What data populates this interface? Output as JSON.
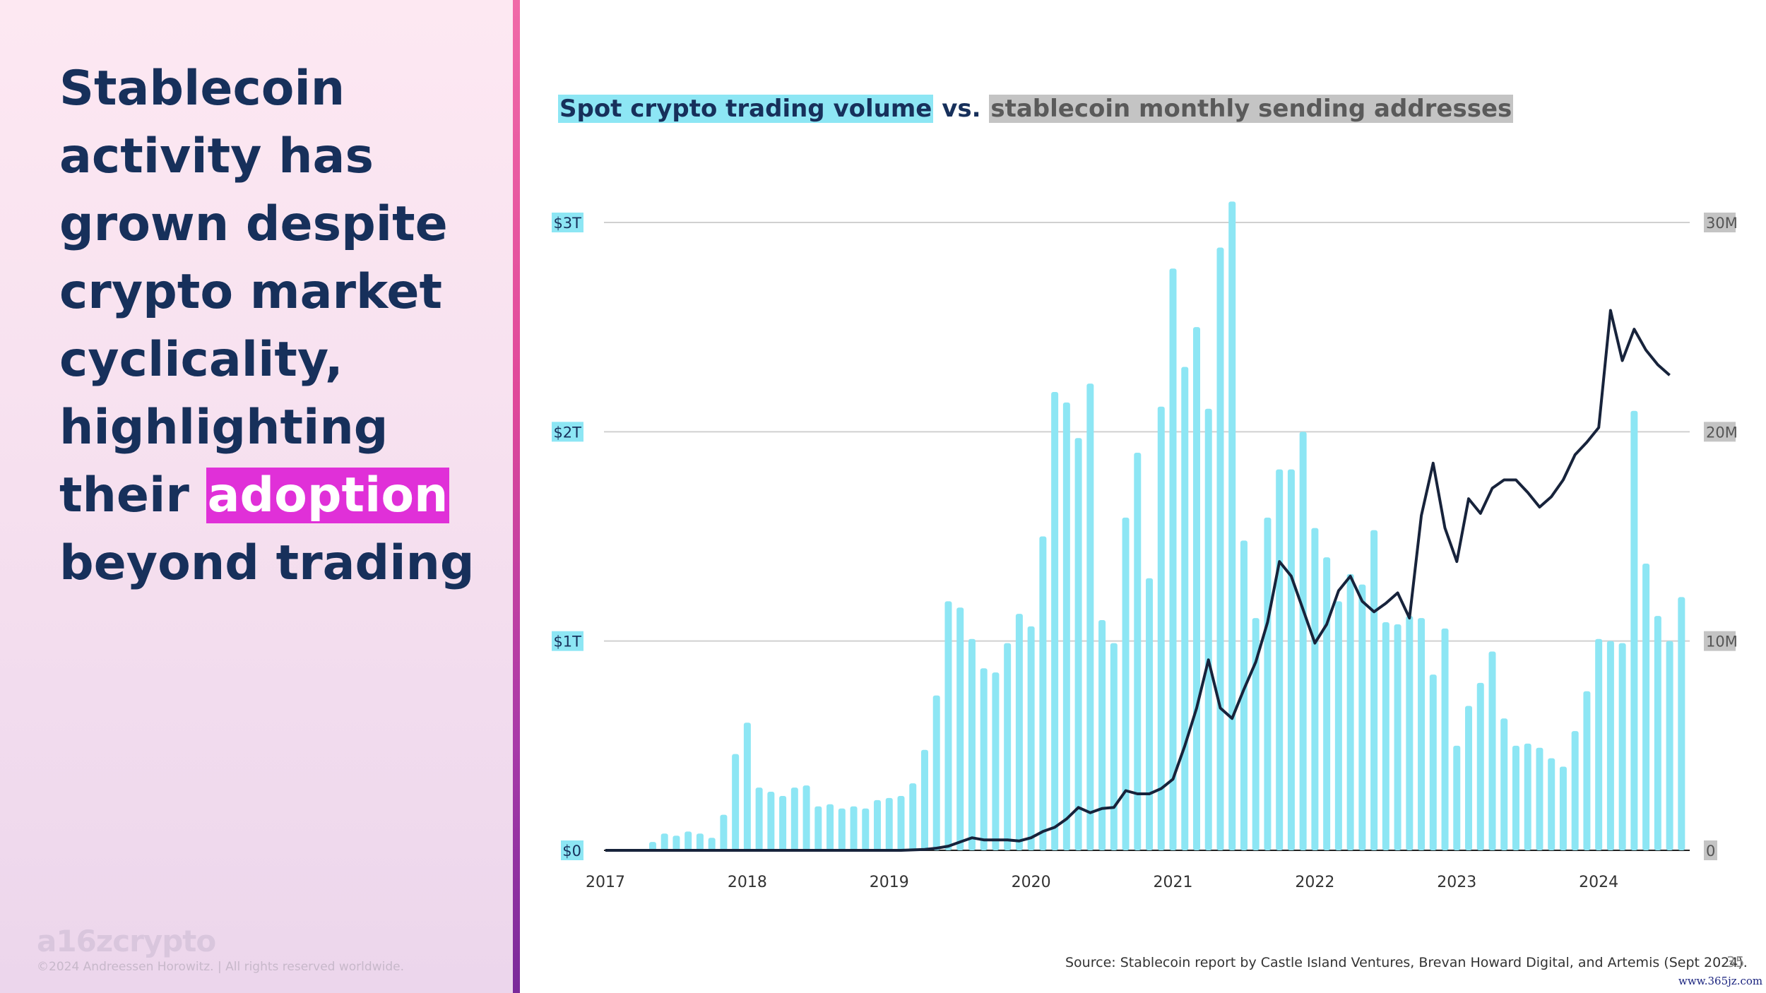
{
  "headline": {
    "before": "Stablecoin activity has grown despite crypto market cyclicality, highlighting their ",
    "highlight": "adoption",
    "after": " beyond trading"
  },
  "brand": {
    "logo": "a16zcrypto",
    "copyright": "©2024 Andreessen Horowitz. |  All rights reserved worldwide."
  },
  "colors": {
    "bars": "#8de6f4",
    "line": "#17233b",
    "accent": "#e030d8",
    "gridline": "#d0d0d0"
  },
  "source": "Source: Stablecoin report by Castle Island Ventures, Brevan Howard Digital, and Artemis (Sept 2024).",
  "page_number": "35",
  "watermark": "www.365jz.com",
  "chart_data": {
    "type": "bar+line",
    "title_parts": [
      "Spot crypto trading volume",
      " vs. ",
      "stablecoin monthly sending addresses"
    ],
    "x_start": "2017-01",
    "x_tick_labels": [
      "2017",
      "2018",
      "2019",
      "2020",
      "2021",
      "2022",
      "2023",
      "2024"
    ],
    "left_axis": {
      "label": "Spot crypto trading volume",
      "ticks": [
        "$0",
        "$1T",
        "$2T",
        "$3T"
      ],
      "tick_values": [
        0,
        1,
        2,
        3
      ],
      "range": [
        0,
        3
      ],
      "unit": "$T"
    },
    "right_axis": {
      "label": "Stablecoin monthly sending addresses",
      "ticks": [
        "0",
        "10M",
        "20M",
        "30M"
      ],
      "tick_values": [
        0,
        10,
        20,
        30
      ],
      "range": [
        0,
        30
      ],
      "unit": "M"
    },
    "series": [
      {
        "name": "Spot crypto trading volume",
        "type": "bar",
        "axis": "left",
        "values": [
          0.0,
          0.0,
          0.0,
          0.0,
          0.04,
          0.08,
          0.07,
          0.09,
          0.08,
          0.06,
          0.17,
          0.46,
          0.61,
          0.3,
          0.28,
          0.26,
          0.3,
          0.31,
          0.21,
          0.22,
          0.2,
          0.21,
          0.2,
          0.24,
          0.25,
          0.26,
          0.32,
          0.48,
          0.74,
          1.19,
          1.16,
          1.01,
          0.87,
          0.85,
          0.99,
          1.13,
          1.07,
          1.5,
          2.19,
          2.14,
          1.97,
          2.23,
          1.1,
          0.99,
          1.59,
          1.9,
          1.3,
          2.12,
          2.78,
          2.31,
          2.5,
          2.11,
          2.88,
          3.1,
          1.48,
          1.11,
          1.59,
          1.82,
          1.82,
          2.0,
          1.54,
          1.4,
          1.19,
          1.32,
          1.27,
          1.53,
          1.09,
          1.08,
          1.12,
          1.11,
          0.84,
          1.06,
          0.5,
          0.69,
          0.8,
          0.95,
          0.63,
          0.5,
          0.51,
          0.49,
          0.44,
          0.4,
          0.57,
          0.76,
          1.01,
          1.0,
          0.99,
          2.1,
          1.37,
          1.12,
          1.0,
          1.21
        ]
      },
      {
        "name": "Stablecoin monthly sending addresses",
        "type": "line",
        "axis": "right",
        "values": [
          0.0,
          0.0,
          0.0,
          0.0,
          0.0,
          0.0,
          0.0,
          0.0,
          0.0,
          0.0,
          0.0,
          0.0,
          0.0,
          0.0,
          0.0,
          0.0,
          0.0,
          0.0,
          0.0,
          0.0,
          0.0,
          0.0,
          0.0,
          0.0,
          0.0,
          0.0,
          0.02,
          0.04,
          0.1,
          0.2,
          0.4,
          0.6,
          0.5,
          0.5,
          0.5,
          0.45,
          0.6,
          0.9,
          1.1,
          1.5,
          2.05,
          1.8,
          2.0,
          2.05,
          2.85,
          2.7,
          2.7,
          2.95,
          3.4,
          5.0,
          6.8,
          9.1,
          6.8,
          6.3,
          7.7,
          9.0,
          10.9,
          13.8,
          13.1,
          11.5,
          9.9,
          10.8,
          12.4,
          13.1,
          11.9,
          11.4,
          11.8,
          12.3,
          11.1,
          16.0,
          18.5,
          15.4,
          13.8,
          16.8,
          16.1,
          17.3,
          17.7,
          17.7,
          17.1,
          16.4,
          16.9,
          17.7,
          18.9,
          19.5,
          20.2,
          25.8,
          23.4,
          24.9,
          23.9,
          23.2,
          22.7
        ]
      }
    ],
    "grid": "horizontal",
    "legend": "title"
  }
}
